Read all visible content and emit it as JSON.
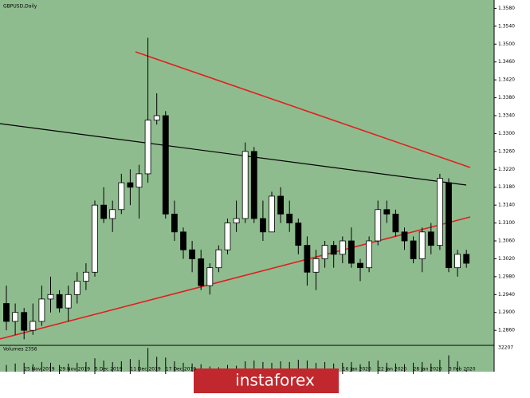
{
  "chart_data": {
    "type": "candlestick",
    "title": "GBPUSD,Daily",
    "categories": [
      null,
      null,
      "25 Nov 2019",
      null,
      null,
      null,
      "29 Nov 2019",
      null,
      null,
      null,
      "5 Dec 2019",
      null,
      null,
      null,
      "11 Dec 2019",
      null,
      null,
      null,
      "17 Dec 2019",
      null,
      null,
      null,
      null,
      null,
      null,
      null,
      null,
      null,
      null,
      null,
      null,
      null,
      null,
      null,
      null,
      null,
      null,
      null,
      "16 Jan 2020",
      null,
      null,
      null,
      "22 Jan 2020",
      null,
      null,
      null,
      "28 Jan 2020",
      null,
      null,
      null,
      "3 Feb 2020",
      null,
      null
    ],
    "ohlc": [
      [
        1.292,
        1.296,
        1.286,
        1.288
      ],
      [
        1.288,
        1.292,
        1.285,
        1.29
      ],
      [
        1.29,
        1.291,
        1.284,
        1.286
      ],
      [
        1.286,
        1.292,
        1.285,
        1.288
      ],
      [
        1.288,
        1.296,
        1.287,
        1.293
      ],
      [
        1.293,
        1.298,
        1.29,
        1.294
      ],
      [
        1.294,
        1.295,
        1.29,
        1.291
      ],
      [
        1.291,
        1.296,
        1.288,
        1.294
      ],
      [
        1.294,
        1.299,
        1.292,
        1.297
      ],
      [
        1.297,
        1.301,
        1.295,
        1.299
      ],
      [
        1.299,
        1.315,
        1.298,
        1.314
      ],
      [
        1.314,
        1.318,
        1.31,
        1.311
      ],
      [
        1.311,
        1.315,
        1.308,
        1.313
      ],
      [
        1.313,
        1.321,
        1.312,
        1.319
      ],
      [
        1.319,
        1.322,
        1.314,
        1.318
      ],
      [
        1.318,
        1.323,
        1.311,
        1.321
      ],
      [
        1.321,
        1.3514,
        1.319,
        1.333
      ],
      [
        1.333,
        1.339,
        1.332,
        1.334
      ],
      [
        1.334,
        1.335,
        1.311,
        1.312
      ],
      [
        1.312,
        1.315,
        1.306,
        1.308
      ],
      [
        1.308,
        1.309,
        1.302,
        1.304
      ],
      [
        1.304,
        1.306,
        1.299,
        1.302
      ],
      [
        1.302,
        1.304,
        1.295,
        1.296
      ],
      [
        1.296,
        1.301,
        1.294,
        1.3
      ],
      [
        1.3,
        1.305,
        1.299,
        1.304
      ],
      [
        1.304,
        1.311,
        1.303,
        1.31
      ],
      [
        1.31,
        1.315,
        1.308,
        1.311
      ],
      [
        1.311,
        1.328,
        1.31,
        1.326
      ],
      [
        1.326,
        1.327,
        1.31,
        1.311
      ],
      [
        1.311,
        1.315,
        1.306,
        1.308
      ],
      [
        1.308,
        1.317,
        1.308,
        1.316
      ],
      [
        1.316,
        1.318,
        1.31,
        1.312
      ],
      [
        1.312,
        1.315,
        1.308,
        1.31
      ],
      [
        1.31,
        1.311,
        1.303,
        1.305
      ],
      [
        1.305,
        1.307,
        1.296,
        1.299
      ],
      [
        1.299,
        1.304,
        1.295,
        1.302
      ],
      [
        1.302,
        1.306,
        1.3,
        1.305
      ],
      [
        1.305,
        1.306,
        1.3,
        1.303
      ],
      [
        1.303,
        1.307,
        1.301,
        1.306
      ],
      [
        1.306,
        1.309,
        1.3,
        1.301
      ],
      [
        1.301,
        1.302,
        1.297,
        1.3
      ],
      [
        1.3,
        1.307,
        1.299,
        1.306
      ],
      [
        1.306,
        1.315,
        1.305,
        1.313
      ],
      [
        1.313,
        1.315,
        1.31,
        1.312
      ],
      [
        1.312,
        1.313,
        1.307,
        1.308
      ],
      [
        1.308,
        1.309,
        1.304,
        1.306
      ],
      [
        1.306,
        1.307,
        1.301,
        1.302
      ],
      [
        1.302,
        1.309,
        1.299,
        1.308
      ],
      [
        1.308,
        1.31,
        1.303,
        1.305
      ],
      [
        1.305,
        1.321,
        1.304,
        1.32
      ],
      [
        1.319,
        1.32,
        1.299,
        1.3
      ],
      [
        1.3,
        1.304,
        1.298,
        1.303
      ],
      [
        1.303,
        1.304,
        1.3,
        1.301
      ]
    ],
    "ylim": [
      1.283,
      1.3595
    ],
    "yticks": [
      {
        "value": 1.358,
        "label": "1.3580"
      },
      {
        "value": 1.354,
        "label": "1.3540"
      },
      {
        "value": 1.35,
        "label": "1.3500"
      },
      {
        "value": 1.346,
        "label": "1.3460"
      },
      {
        "value": 1.342,
        "label": "1.3420"
      },
      {
        "value": 1.338,
        "label": "1.3380"
      },
      {
        "value": 1.334,
        "label": "1.3340"
      },
      {
        "value": 1.33,
        "label": "1.3300"
      },
      {
        "value": 1.326,
        "label": "1.3260"
      },
      {
        "value": 1.322,
        "label": "1.3220"
      },
      {
        "value": 1.318,
        "label": "1.3180"
      },
      {
        "value": 1.314,
        "label": "1.3140"
      },
      {
        "value": 1.31,
        "label": "1.3100"
      },
      {
        "value": 1.306,
        "label": "1.3060"
      },
      {
        "value": 1.302,
        "label": "1.3020"
      },
      {
        "value": 1.298,
        "label": "1.2980"
      },
      {
        "value": 1.294,
        "label": "1.2940"
      },
      {
        "value": 1.29,
        "label": "1.2900"
      },
      {
        "value": 1.286,
        "label": "1.2860"
      }
    ],
    "up_color": "#ffffff",
    "down_color": "#000000",
    "background": "#8fbc8f",
    "volume": {
      "title": "Volumes 2356",
      "ylim": [
        0,
        32207
      ],
      "yticks": [
        32207
      ],
      "values": [
        9000,
        11000,
        12000,
        10000,
        13000,
        12000,
        9000,
        11000,
        12000,
        13000,
        18000,
        15000,
        13000,
        14000,
        17000,
        16000,
        32000,
        20000,
        19000,
        14000,
        12000,
        11000,
        10000,
        7000,
        6000,
        9000,
        8000,
        14000,
        15000,
        13000,
        12000,
        14000,
        13000,
        16000,
        15000,
        12000,
        13000,
        11000,
        12000,
        13000,
        10000,
        14000,
        15000,
        12000,
        11000,
        10000,
        12000,
        13000,
        11000,
        16000,
        22000,
        14000,
        2356
      ]
    }
  },
  "watermark": "instaforex"
}
